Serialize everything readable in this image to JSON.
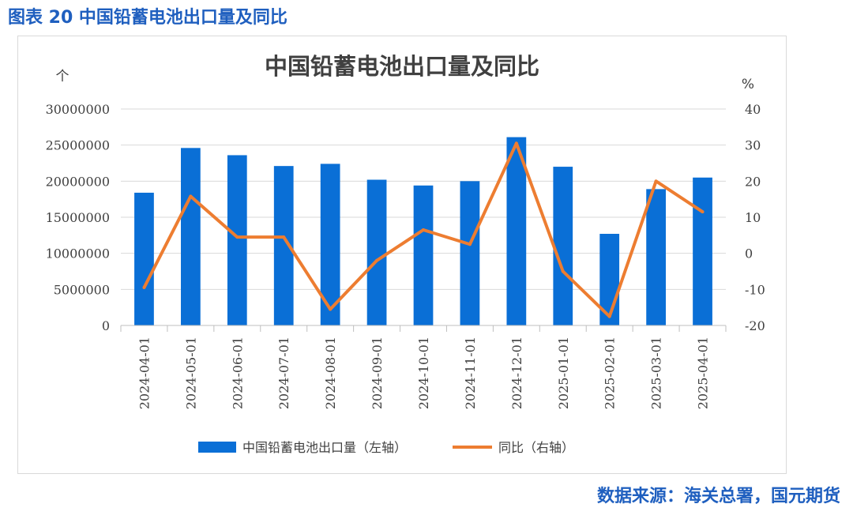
{
  "figure_caption": "图表 20 中国铅蓄电池出口量及同比",
  "source": "数据来源：海关总署，国元期货",
  "chart_data": {
    "type": "bar",
    "title": "中国铅蓄电池出口量及同比",
    "categories": [
      "2024-04-01",
      "2024-05-01",
      "2024-06-01",
      "2024-07-01",
      "2024-08-01",
      "2024-09-01",
      "2024-10-01",
      "2024-11-01",
      "2024-12-01",
      "2025-01-01",
      "2025-02-01",
      "2025-03-01",
      "2025-04-01"
    ],
    "series": [
      {
        "name": "中国铅蓄电池出口量（左轴）",
        "type": "bar",
        "axis": "left",
        "color": "#0a6fd6",
        "values": [
          18400000,
          24600000,
          23600000,
          22100000,
          22400000,
          20200000,
          19400000,
          20000000,
          26100000,
          22000000,
          12700000,
          18900000,
          20500000
        ]
      },
      {
        "name": "同比（右轴）",
        "type": "line",
        "axis": "right",
        "color": "#ed7d31",
        "values": [
          -9.5,
          15.8,
          4.5,
          4.5,
          -15.5,
          -2,
          6.5,
          2.5,
          30.5,
          -5,
          -17.5,
          20,
          11.5
        ]
      }
    ],
    "left_axis": {
      "unit": "个",
      "min": 0,
      "max": 30000000,
      "ticks": [
        0,
        5000000,
        10000000,
        15000000,
        20000000,
        25000000,
        30000000
      ],
      "tick_labels": [
        "0",
        "5000000",
        "10000000",
        "15000000",
        "20000000",
        "25000000",
        "30000000"
      ]
    },
    "right_axis": {
      "unit": "%",
      "min": -20,
      "max": 40,
      "ticks": [
        -20,
        -10,
        0,
        10,
        20,
        30,
        40
      ],
      "tick_labels": [
        "-20",
        "-10",
        "0",
        "10",
        "20",
        "30",
        "40"
      ]
    },
    "grid": true,
    "legend_position": "bottom"
  }
}
